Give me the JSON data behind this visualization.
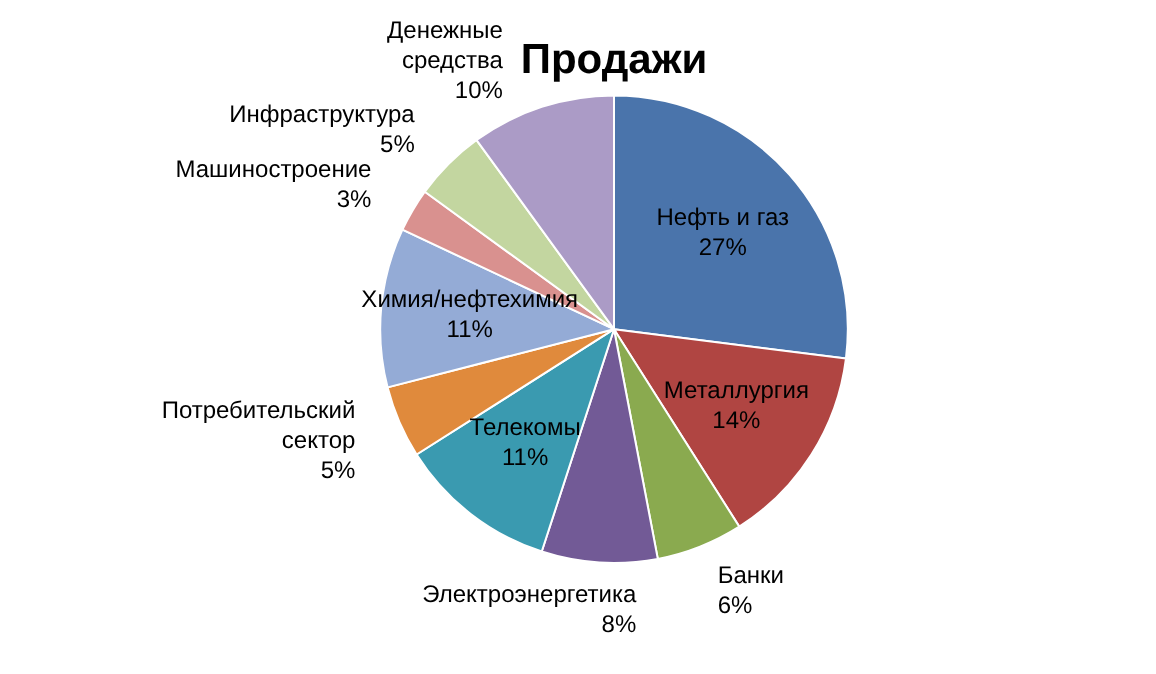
{
  "chart_data": {
    "type": "pie",
    "title": "Продажи",
    "categories": [
      "Нефть и газ",
      "Металлургия",
      "Банки",
      "Электроэнергетика",
      "Телекомы",
      "Потребительский сектор",
      "Химия/нефтехимия",
      "Машиностроение",
      "Инфраструктура",
      "Денежные средства"
    ],
    "values": [
      27,
      14,
      6,
      8,
      11,
      5,
      11,
      3,
      5,
      10
    ],
    "colors": [
      "#4a74ab",
      "#b04542",
      "#8aaa4f",
      "#725a96",
      "#3a9ab0",
      "#e08a3c",
      "#94abd6",
      "#d9918f",
      "#c3d6a0",
      "#ab9bc6"
    ],
    "value_labels": [
      "27%",
      "14%",
      "6%",
      "8%",
      "11%",
      "5%",
      "11%",
      "3%",
      "5%",
      "10%"
    ],
    "legend": false
  }
}
